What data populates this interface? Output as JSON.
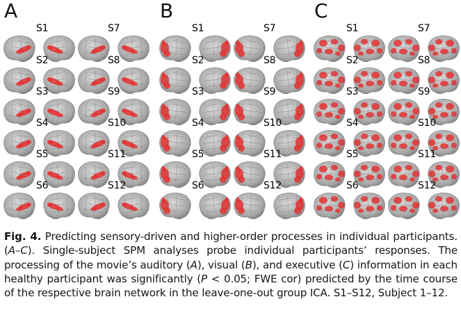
{
  "figure": {
    "panels": [
      {
        "letter": "A",
        "color": "#e23434",
        "pattern": "auditory"
      },
      {
        "letter": "B",
        "color": "#e23434",
        "pattern": "visual"
      },
      {
        "letter": "C",
        "color": "#e23434",
        "pattern": "executive"
      }
    ],
    "subjects": [
      "S1",
      "S2",
      "S3",
      "S4",
      "S5",
      "S6",
      "S7",
      "S8",
      "S9",
      "S10",
      "S11",
      "S12"
    ]
  },
  "caption": {
    "label": "Fig. 4.",
    "title": "Predicting sensory-driven and higher-order processes in individual participants.",
    "range_open": "(",
    "range_letters": "A–C",
    "range_close": ").",
    "sentence2": "Single-subject SPM analyses probe individual participants’ responses. The processing of the movie’s auditory (",
    "a": "A",
    "s2b": "), visual (",
    "b": "B",
    "s2c": "), and executive (",
    "c": "C",
    "s2d": ") information in each healthy participant was significantly (",
    "p": "P",
    "s2e": " < 0.05; FWE cor) predicted by the time course of the respective brain network in the leave-one-out group ICA. S1–S12, Subject 1–12."
  }
}
